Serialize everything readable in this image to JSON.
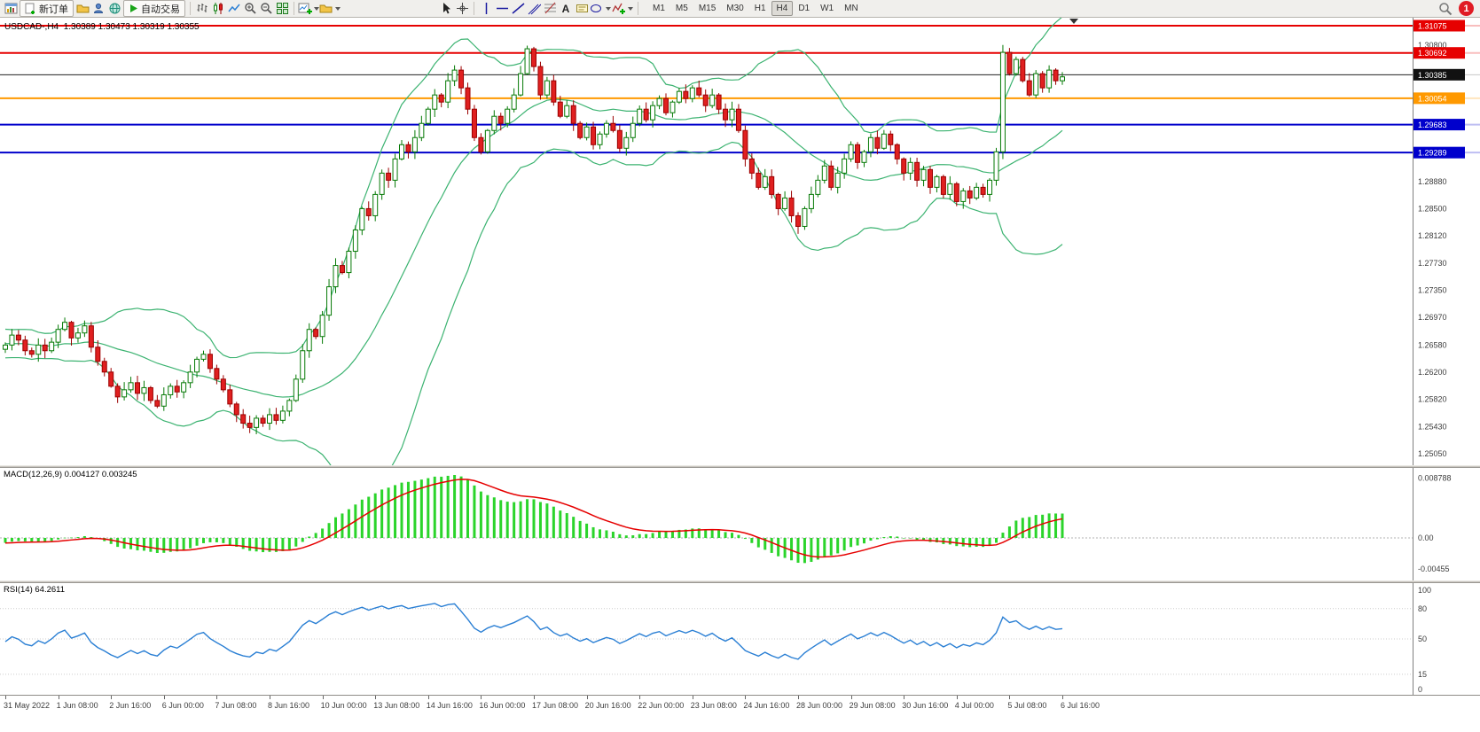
{
  "toolbar": {
    "new_order_label": "新订单",
    "auto_trading_label": "自动交易",
    "text_tool": "A",
    "timeframes": [
      "M1",
      "M5",
      "M15",
      "M30",
      "H1",
      "H4",
      "D1",
      "W1",
      "MN"
    ],
    "active_timeframe": "H4",
    "notification_count": "1"
  },
  "chart": {
    "title": "USDCAD-,H4",
    "ohlc_display": "1.30389 1.30473 1.30319 1.30355",
    "axis_labels": [
      {
        "price": 1.308,
        "label": "1.30800"
      },
      {
        "price": 1.2888,
        "label": "1.28880"
      },
      {
        "price": 1.285,
        "label": "1.28500"
      },
      {
        "price": 1.2812,
        "label": "1.28120"
      },
      {
        "price": 1.2773,
        "label": "1.27730"
      },
      {
        "price": 1.2735,
        "label": "1.27350"
      },
      {
        "price": 1.2697,
        "label": "1.26970"
      },
      {
        "price": 1.2658,
        "label": "1.26580"
      },
      {
        "price": 1.262,
        "label": "1.26200"
      },
      {
        "price": 1.2582,
        "label": "1.25820"
      },
      {
        "price": 1.2543,
        "label": "1.25430"
      },
      {
        "price": 1.2505,
        "label": "1.25050"
      }
    ],
    "hlines": [
      {
        "price": 1.31075,
        "label": "1.31075",
        "color": "#e60000",
        "badge_bg": "#e60000",
        "badge_fg": "#ffffff",
        "width": 2
      },
      {
        "price": 1.30692,
        "label": "1.30692",
        "color": "#e60000",
        "badge_bg": "#e60000",
        "badge_fg": "#ffffff",
        "width": 2
      },
      {
        "price": 1.30385,
        "label": "1.30385",
        "color": "#222222",
        "badge_bg": "#111111",
        "badge_fg": "#ffffff",
        "width": 1
      },
      {
        "price": 1.30054,
        "label": "1.30054",
        "color": "#ff9900",
        "badge_bg": "#ff9900",
        "badge_fg": "#ffffff",
        "width": 2
      },
      {
        "price": 1.29683,
        "label": "1.29683",
        "color": "#0000cc",
        "badge_bg": "#0000cc",
        "badge_fg": "#ffffff",
        "width": 2
      },
      {
        "price": 1.29289,
        "label": "1.29289",
        "color": "#0000cc",
        "badge_bg": "#0000cc",
        "badge_fg": "#ffffff",
        "width": 2
      }
    ]
  },
  "chart_data": {
    "type": "candlestick",
    "symbol": "USDCAD-",
    "timeframe": "H4",
    "time_labels": [
      "31 May 2022",
      "1 Jun 08:00",
      "2 Jun 16:00",
      "6 Jun 00:00",
      "7 Jun 08:00",
      "8 Jun 16:00",
      "10 Jun 00:00",
      "13 Jun 08:00",
      "14 Jun 16:00",
      "16 Jun 00:00",
      "17 Jun 08:00",
      "20 Jun 16:00",
      "22 Jun 00:00",
      "23 Jun 08:00",
      "24 Jun 16:00",
      "28 Jun 00:00",
      "29 Jun 08:00",
      "30 Jun 16:00",
      "4 Jul 00:00",
      "5 Jul 08:00",
      "6 Jul 16:00"
    ],
    "history_closes": [
      1.27,
      1.271,
      1.2695,
      1.2688,
      1.2702,
      1.2715,
      1.2698,
      1.2685,
      1.2672,
      1.269,
      1.2705,
      1.2692,
      1.268,
      1.2668,
      1.2678,
      1.269,
      1.2682,
      1.267,
      1.266,
      1.2672,
      1.2685,
      1.2675,
      1.2662,
      1.2655,
      1.2668,
      1.268,
      1.267,
      1.2658,
      1.2648,
      1.266,
      1.2672,
      1.2665,
      1.2652,
      1.2645,
      1.2658,
      1.267,
      1.2662,
      1.265,
      1.2642,
      1.2652
    ],
    "closes": [
      1.2658,
      1.2672,
      1.2665,
      1.265,
      1.2645,
      1.2658,
      1.265,
      1.2662,
      1.268,
      1.269,
      1.2668,
      1.2675,
      1.2685,
      1.2655,
      1.2635,
      1.262,
      1.26,
      1.2585,
      1.2595,
      1.2605,
      1.259,
      1.2598,
      1.258,
      1.2572,
      1.2588,
      1.26,
      1.2592,
      1.2605,
      1.262,
      1.2638,
      1.2645,
      1.2625,
      1.261,
      1.2595,
      1.2575,
      1.256,
      1.2548,
      1.2542,
      1.2555,
      1.2548,
      1.256,
      1.2552,
      1.2565,
      1.258,
      1.261,
      1.265,
      1.268,
      1.267,
      1.27,
      1.274,
      1.277,
      1.276,
      1.279,
      1.282,
      1.285,
      1.284,
      1.287,
      1.29,
      1.289,
      1.292,
      1.294,
      1.293,
      1.295,
      1.297,
      1.299,
      1.301,
      1.3,
      1.303,
      1.3045,
      1.302,
      1.299,
      1.295,
      1.293,
      1.296,
      1.298,
      1.297,
      1.299,
      1.301,
      1.304,
      1.3075,
      1.305,
      1.301,
      1.303,
      1.3,
      1.298,
      1.2995,
      1.297,
      1.295,
      1.2965,
      1.294,
      1.2955,
      1.297,
      1.296,
      1.2935,
      1.295,
      1.297,
      1.299,
      1.2975,
      1.2995,
      1.3005,
      1.2985,
      1.3,
      1.3015,
      1.3005,
      1.302,
      1.301,
      1.2995,
      1.301,
      1.299,
      1.2975,
      1.299,
      1.296,
      1.292,
      1.29,
      1.288,
      1.2895,
      1.287,
      1.285,
      1.2865,
      1.284,
      1.2825,
      1.285,
      1.287,
      1.289,
      1.291,
      1.288,
      1.29,
      1.292,
      1.294,
      1.2915,
      1.293,
      1.295,
      1.2935,
      1.2955,
      1.294,
      1.292,
      1.29,
      1.2915,
      1.289,
      1.2905,
      1.288,
      1.2895,
      1.287,
      1.2885,
      1.286,
      1.2875,
      1.2865,
      1.288,
      1.287,
      1.289,
      1.293,
      1.307,
      1.304,
      1.306,
      1.303,
      1.301,
      1.304,
      1.302,
      1.3045,
      1.303,
      1.30355
    ],
    "bollinger": {
      "period": 20,
      "deviation": 2
    },
    "macd": {
      "label": "MACD(12,26,9)",
      "value_main": "0.004127",
      "value_signal": "0.003245",
      "fast": 12,
      "slow": 26,
      "signal": 9,
      "axis": [
        {
          "value": 0.008788,
          "label": "0.008788"
        },
        {
          "value": 0,
          "label": "0.00"
        },
        {
          "value": -0.00455,
          "label": "-0.00455"
        }
      ]
    },
    "rsi": {
      "label": "RSI(14)",
      "value": "64.2611",
      "period": 14,
      "axis": [
        {
          "value": 100,
          "label": "100",
          "line": false
        },
        {
          "value": 80,
          "label": "80",
          "line": true
        },
        {
          "value": 50,
          "label": "50",
          "line": true
        },
        {
          "value": 15,
          "label": "15",
          "line": true
        },
        {
          "value": 0,
          "label": "0",
          "line": false
        }
      ]
    }
  },
  "colors": {
    "bull_stroke": "#067a06",
    "bull_fill": "#ffffff",
    "bear_stroke": "#9b0000",
    "bear_fill": "#e02020",
    "bollinger": "#3CB371",
    "macd_hist": "#2bd42b",
    "macd_signal": "#e60000",
    "rsi_line": "#2a7fd4",
    "axis_text": "#3c3c3c"
  }
}
